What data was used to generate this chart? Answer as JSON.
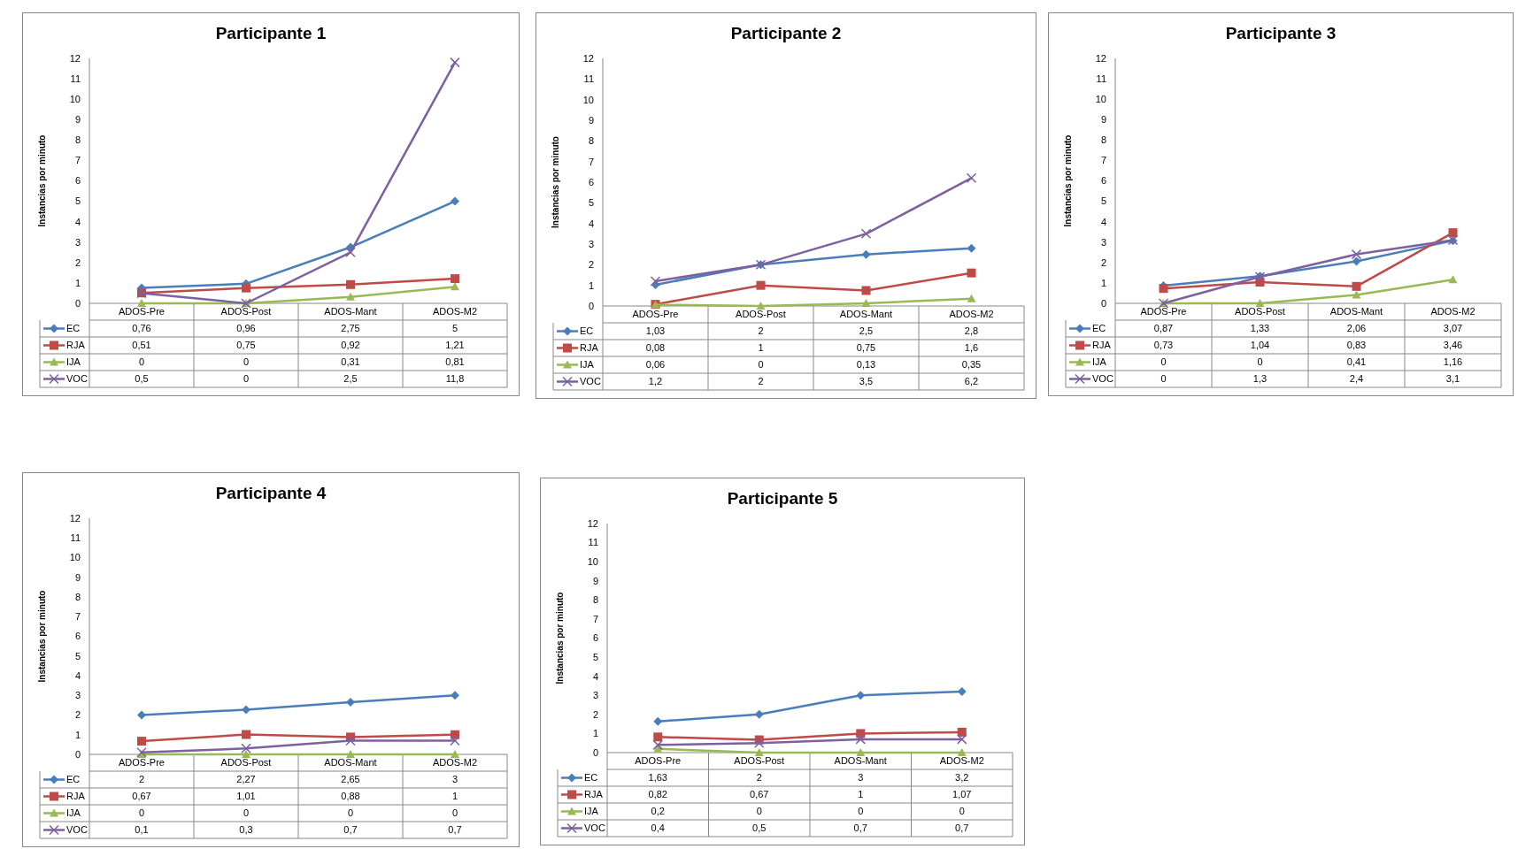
{
  "chart_data": [
    {
      "type": "line",
      "title": "Participante 1",
      "ylabel": "Instancias por minuto",
      "categories": [
        "ADOS-Pre",
        "ADOS-Post",
        "ADOS-Mant",
        "ADOS-M2"
      ],
      "ylim": [
        0,
        12
      ],
      "yticks": [
        0,
        1,
        2,
        3,
        4,
        5,
        6,
        7,
        8,
        9,
        10,
        11,
        12
      ],
      "legend": "bottom",
      "series": [
        {
          "name": "EC",
          "color": "#4a7ebb",
          "marker": "diamond",
          "values": [
            0.76,
            0.96,
            2.75,
            5
          ],
          "value_labels": [
            "0,76",
            "0,96",
            "2,75",
            "5"
          ]
        },
        {
          "name": "RJA",
          "color": "#be4b48",
          "marker": "square",
          "values": [
            0.51,
            0.75,
            0.92,
            1.21
          ],
          "value_labels": [
            "0,51",
            "0,75",
            "0,92",
            "1,21"
          ]
        },
        {
          "name": "IJA",
          "color": "#98b954",
          "marker": "triangle",
          "values": [
            0,
            0,
            0.31,
            0.81
          ],
          "value_labels": [
            "0",
            "0",
            "0,31",
            "0,81"
          ]
        },
        {
          "name": "VOC",
          "color": "#7d60a0",
          "marker": "cross",
          "values": [
            0.5,
            0,
            2.5,
            11.8
          ],
          "value_labels": [
            "0,5",
            "0",
            "2,5",
            "11,8"
          ]
        }
      ]
    },
    {
      "type": "line",
      "title": "Participante 2",
      "ylabel": "Instancias por minuto",
      "categories": [
        "ADOS-Pre",
        "ADOS-Post",
        "ADOS-Mant",
        "ADOS-M2"
      ],
      "ylim": [
        0,
        12
      ],
      "yticks": [
        0,
        1,
        2,
        3,
        4,
        5,
        6,
        7,
        8,
        9,
        10,
        11,
        12
      ],
      "legend": "bottom",
      "series": [
        {
          "name": "EC",
          "color": "#4a7ebb",
          "marker": "diamond",
          "values": [
            1.03,
            2,
            2.5,
            2.8
          ],
          "value_labels": [
            "1,03",
            "2",
            "2,5",
            "2,8"
          ]
        },
        {
          "name": "RJA",
          "color": "#be4b48",
          "marker": "square",
          "values": [
            0.08,
            1,
            0.75,
            1.6
          ],
          "value_labels": [
            "0,08",
            "1",
            "0,75",
            "1,6"
          ]
        },
        {
          "name": "IJA",
          "color": "#98b954",
          "marker": "triangle",
          "values": [
            0.06,
            0,
            0.13,
            0.35
          ],
          "value_labels": [
            "0,06",
            "0",
            "0,13",
            "0,35"
          ]
        },
        {
          "name": "VOC",
          "color": "#7d60a0",
          "marker": "cross",
          "values": [
            1.2,
            2,
            3.5,
            6.2
          ],
          "value_labels": [
            "1,2",
            "2",
            "3,5",
            "6,2"
          ]
        }
      ]
    },
    {
      "type": "line",
      "title": "Participante 3",
      "ylabel": "Instancias por minuto",
      "categories": [
        "ADOS-Pre",
        "ADOS-Post",
        "ADOS-Mant",
        "ADOS-M2"
      ],
      "ylim": [
        0,
        12
      ],
      "yticks": [
        0,
        1,
        2,
        3,
        4,
        5,
        6,
        7,
        8,
        9,
        10,
        11,
        12
      ],
      "legend": "bottom",
      "series": [
        {
          "name": "EC",
          "color": "#4a7ebb",
          "marker": "diamond",
          "values": [
            0.87,
            1.33,
            2.06,
            3.07
          ],
          "value_labels": [
            "0,87",
            "1,33",
            "2,06",
            "3,07"
          ]
        },
        {
          "name": "RJA",
          "color": "#be4b48",
          "marker": "square",
          "values": [
            0.73,
            1.04,
            0.83,
            3.46
          ],
          "value_labels": [
            "0,73",
            "1,04",
            "0,83",
            "3,46"
          ]
        },
        {
          "name": "IJA",
          "color": "#98b954",
          "marker": "triangle",
          "values": [
            0,
            0,
            0.41,
            1.16
          ],
          "value_labels": [
            "0",
            "0",
            "0,41",
            "1,16"
          ]
        },
        {
          "name": "VOC",
          "color": "#7d60a0",
          "marker": "cross",
          "values": [
            0,
            1.3,
            2.4,
            3.1
          ],
          "value_labels": [
            "0",
            "1,3",
            "2,4",
            "3,1"
          ]
        }
      ]
    },
    {
      "type": "line",
      "title": "Participante 4",
      "ylabel": "Instancias por minuto",
      "categories": [
        "ADOS-Pre",
        "ADOS-Post",
        "ADOS-Mant",
        "ADOS-M2"
      ],
      "ylim": [
        0,
        12
      ],
      "yticks": [
        0,
        1,
        2,
        3,
        4,
        5,
        6,
        7,
        8,
        9,
        10,
        11,
        12
      ],
      "legend": "bottom",
      "series": [
        {
          "name": "EC",
          "color": "#4a7ebb",
          "marker": "diamond",
          "values": [
            2,
            2.27,
            2.65,
            3
          ],
          "value_labels": [
            "2",
            "2,27",
            "2,65",
            "3"
          ]
        },
        {
          "name": "RJA",
          "color": "#be4b48",
          "marker": "square",
          "values": [
            0.67,
            1.01,
            0.88,
            1
          ],
          "value_labels": [
            "0,67",
            "1,01",
            "0,88",
            "1"
          ]
        },
        {
          "name": "IJA",
          "color": "#98b954",
          "marker": "triangle",
          "values": [
            0,
            0,
            0,
            0
          ],
          "value_labels": [
            "0",
            "0",
            "0",
            "0"
          ]
        },
        {
          "name": "VOC",
          "color": "#7d60a0",
          "marker": "cross",
          "values": [
            0.1,
            0.3,
            0.7,
            0.7
          ],
          "value_labels": [
            "0,1",
            "0,3",
            "0,7",
            "0,7"
          ]
        }
      ]
    },
    {
      "type": "line",
      "title": "Participante 5",
      "ylabel": "Instancias por minuto",
      "categories": [
        "ADOS-Pre",
        "ADOS-Post",
        "ADOS-Mant",
        "ADOS-M2"
      ],
      "ylim": [
        0,
        12
      ],
      "yticks": [
        0,
        1,
        2,
        3,
        4,
        5,
        6,
        7,
        8,
        9,
        10,
        11,
        12
      ],
      "legend": "bottom",
      "series": [
        {
          "name": "EC",
          "color": "#4a7ebb",
          "marker": "diamond",
          "values": [
            1.63,
            2,
            3,
            3.2
          ],
          "value_labels": [
            "1,63",
            "2",
            "3",
            "3,2"
          ]
        },
        {
          "name": "RJA",
          "color": "#be4b48",
          "marker": "square",
          "values": [
            0.82,
            0.67,
            1,
            1.07
          ],
          "value_labels": [
            "0,82",
            "0,67",
            "1",
            "1,07"
          ]
        },
        {
          "name": "IJA",
          "color": "#98b954",
          "marker": "triangle",
          "values": [
            0.2,
            0,
            0,
            0
          ],
          "value_labels": [
            "0,2",
            "0",
            "0",
            "0"
          ]
        },
        {
          "name": "VOC",
          "color": "#7d60a0",
          "marker": "cross",
          "values": [
            0.4,
            0.5,
            0.7,
            0.7
          ],
          "value_labels": [
            "0,4",
            "0,5",
            "0,7",
            "0,7"
          ]
        }
      ]
    }
  ]
}
